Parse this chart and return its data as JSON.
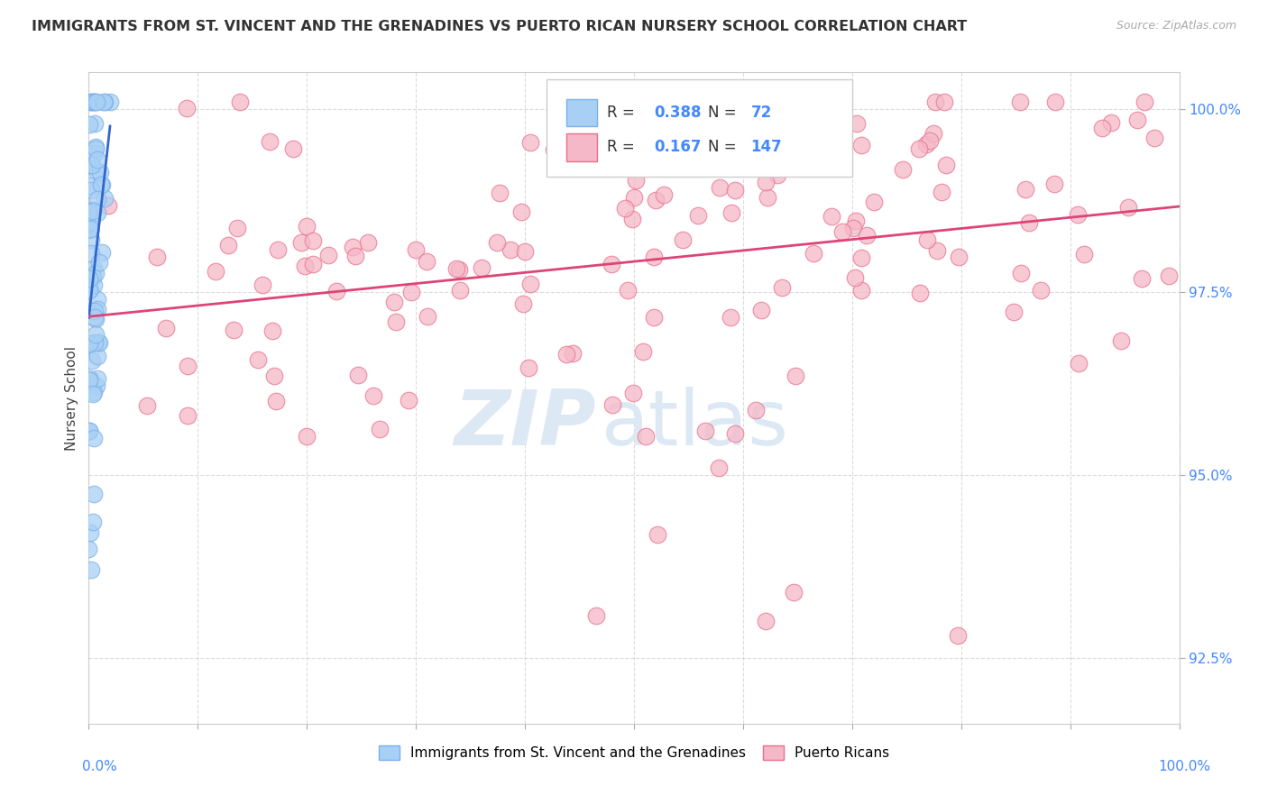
{
  "title": "IMMIGRANTS FROM ST. VINCENT AND THE GRENADINES VS PUERTO RICAN NURSERY SCHOOL CORRELATION CHART",
  "source": "Source: ZipAtlas.com",
  "ylabel": "Nursery School",
  "legend_blue_R": "0.388",
  "legend_blue_N": "72",
  "legend_pink_R": "0.167",
  "legend_pink_N": "147",
  "ytick_labels": [
    "92.5%",
    "95.0%",
    "97.5%",
    "100.0%"
  ],
  "ytick_values": [
    0.925,
    0.95,
    0.975,
    1.0
  ],
  "xlim": [
    0.0,
    1.0
  ],
  "ylim": [
    0.916,
    1.005
  ],
  "blue_color": "#a8d0f5",
  "blue_edge_color": "#7ab0e8",
  "pink_color": "#f5b8c8",
  "pink_edge_color": "#e8708a",
  "blue_line_color": "#3366cc",
  "pink_line_color": "#dd4477",
  "background_color": "#ffffff",
  "grid_color": "#cccccc",
  "ytick_color": "#4488ff",
  "xlabel_color": "#4488ff",
  "watermark_zip_color": "#dde8f5",
  "watermark_atlas_color": "#dde8f5",
  "title_color": "#333333",
  "source_color": "#aaaaaa"
}
